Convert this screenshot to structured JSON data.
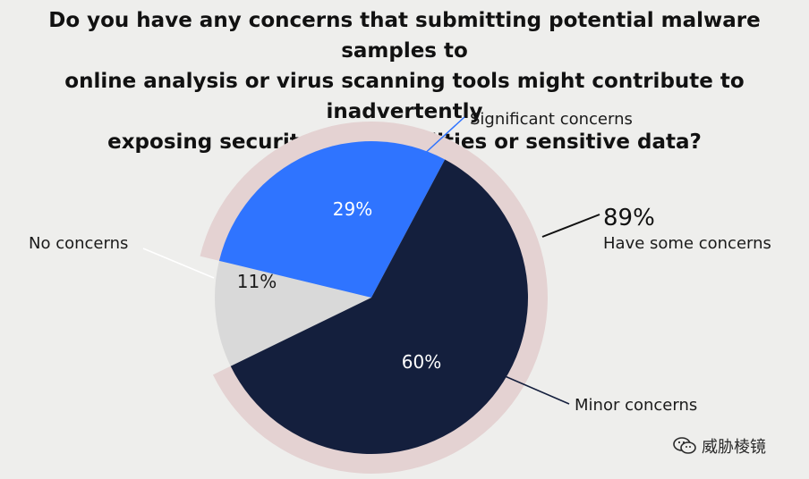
{
  "title_lines": [
    "Do you have any concerns that submitting potential malware samples to",
    "online analysis or virus scanning tools might contribute to inadvertently",
    "exposing security vulnerabilities or sensitive data?"
  ],
  "colors": {
    "significant": "#2f74ff",
    "minor": "#141f3d",
    "none": "#d9d9d9",
    "ring": "#e4d2d2",
    "background": "#eeeeec"
  },
  "chart_data": {
    "type": "pie",
    "slices": [
      {
        "label": "Significant concerns",
        "value": 29,
        "value_label": "29%"
      },
      {
        "label": "Minor concerns",
        "value": 60,
        "value_label": "60%"
      },
      {
        "label": "No concerns",
        "value": 11,
        "value_label": "11%"
      }
    ],
    "group_annotation": {
      "value_label": "89%",
      "text": "Have some concerns"
    }
  },
  "watermark": {
    "text": "威胁棱镜",
    "icon": "wechat-icon"
  }
}
